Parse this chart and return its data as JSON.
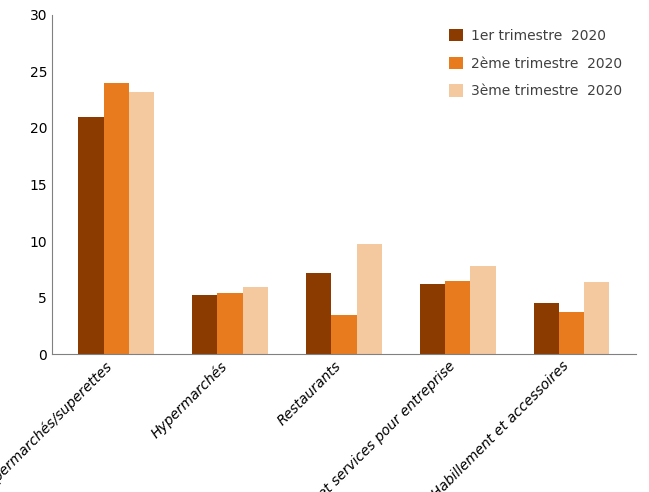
{
  "categories": [
    "Supermarchés/superettes",
    "Hypermarchés",
    "Restaurants",
    "Biens et services pour entreprise",
    "Habillement et accessoires"
  ],
  "series": [
    {
      "label": "1er trimestre  2020",
      "values": [
        21.0,
        5.2,
        7.2,
        6.2,
        4.5
      ],
      "color": "#8B3A00"
    },
    {
      "label": "2ème trimestre  2020",
      "values": [
        24.0,
        5.4,
        3.5,
        6.5,
        3.7
      ],
      "color": "#E87B1E"
    },
    {
      "label": "3ème trimestre  2020",
      "values": [
        23.2,
        5.9,
        9.7,
        7.8,
        6.4
      ],
      "color": "#F5C9A0"
    }
  ],
  "ylim": [
    0,
    30
  ],
  "yticks": [
    0,
    5,
    10,
    15,
    20,
    25,
    30
  ],
  "bar_width": 0.22,
  "background_color": "#ffffff",
  "legend_fontsize": 10,
  "tick_fontsize": 10,
  "label_fontsize": 10
}
